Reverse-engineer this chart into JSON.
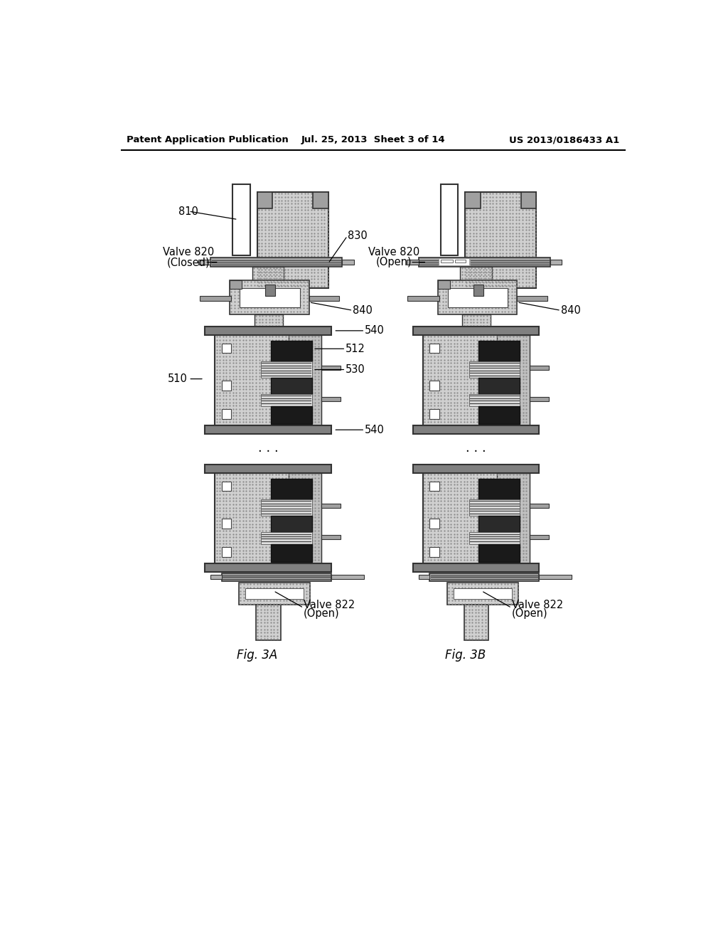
{
  "header_left": "Patent Application Publication",
  "header_mid": "Jul. 25, 2013  Sheet 3 of 14",
  "header_right": "US 2013/0186433 A1",
  "fig3a": "Fig. 3A",
  "fig3b": "Fig. 3B",
  "bg": "#ffffff",
  "c_stipple": "#c8c8c8",
  "c_dark_gray": "#808080",
  "c_darker_gray": "#606060",
  "c_black": "#1a1a1a",
  "c_white": "#ffffff",
  "c_stripe": "#555555",
  "c_medium": "#999999"
}
